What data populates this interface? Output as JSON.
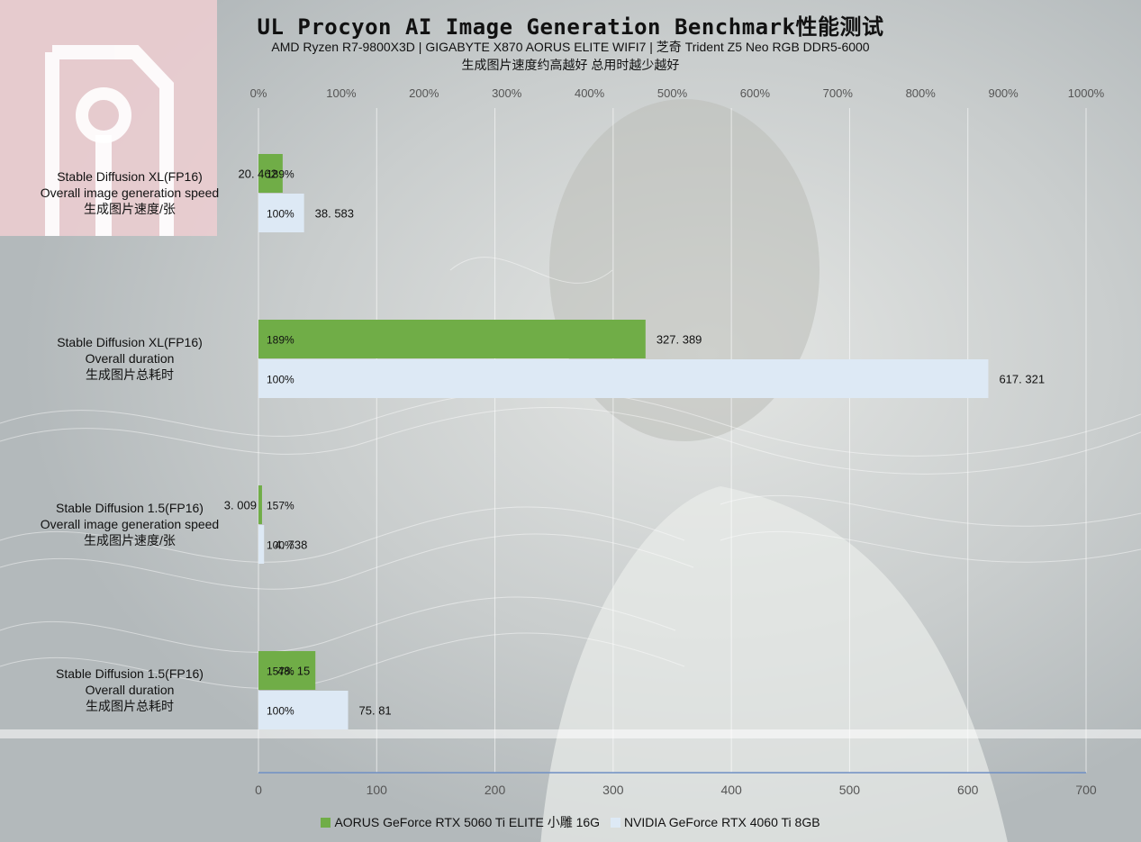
{
  "title": "UL Procyon AI Image Generation Benchmark性能测试",
  "subtitle": "AMD Ryzen R7-9800X3D | GIGABYTE X870 AORUS ELITE WIFI7 | 芝奇 Trident Z5 Neo RGB DDR5-6000",
  "note": "生成图片速度约高越好 总用时越少越好",
  "chart_data": {
    "type": "bar",
    "orientation": "horizontal",
    "title": "UL Procyon AI Image Generation Benchmark性能测试",
    "categories": [
      {
        "lines": [
          "Stable Diffusion XL(FP16)",
          "Overall image generation speed",
          "生成图片速度/张"
        ]
      },
      {
        "lines": [
          "Stable Diffusion XL(FP16)",
          "Overall duration",
          "生成图片总耗时"
        ]
      },
      {
        "lines": [
          "Stable Diffusion 1.5(FP16)",
          "Overall image generation speed",
          "生成图片速度/张"
        ]
      },
      {
        "lines": [
          "Stable Diffusion 1.5(FP16)",
          "Overall duration",
          "生成图片总耗时"
        ]
      }
    ],
    "series": [
      {
        "name": "AORUS GeForce RTX 5060 Ti ELITE 小雕 16G",
        "color": "#70ad47",
        "percent_labels": [
          "189%",
          "189%",
          "157%",
          "157%"
        ],
        "percent_values": [
          189,
          189,
          157,
          157
        ],
        "values": [
          20.462,
          327.389,
          3.009,
          48.15
        ],
        "value_labels": [
          "20. 462",
          "327. 389",
          "3. 009",
          "48. 15"
        ]
      },
      {
        "name": "NVIDIA GeForce RTX 4060 Ti 8GB",
        "color": "#dde9f5",
        "percent_labels": [
          "100%",
          "100%",
          "100%",
          "100%"
        ],
        "percent_values": [
          100,
          100,
          100,
          100
        ],
        "values": [
          38.583,
          617.321,
          4.738,
          75.81
        ],
        "value_labels": [
          "38. 583",
          "617. 321",
          "4. 738",
          "75. 81"
        ]
      }
    ],
    "x_axis_top": {
      "ticks": [
        "0%",
        "100%",
        "200%",
        "300%",
        "400%",
        "500%",
        "600%",
        "700%",
        "800%",
        "900%",
        "1000%"
      ],
      "range": [
        0,
        1000
      ]
    },
    "x_axis_bottom": {
      "ticks": [
        "0",
        "100",
        "200",
        "300",
        "400",
        "500",
        "600",
        "700"
      ],
      "range": [
        0,
        700
      ]
    },
    "grid": true,
    "legend_position": "bottom"
  }
}
